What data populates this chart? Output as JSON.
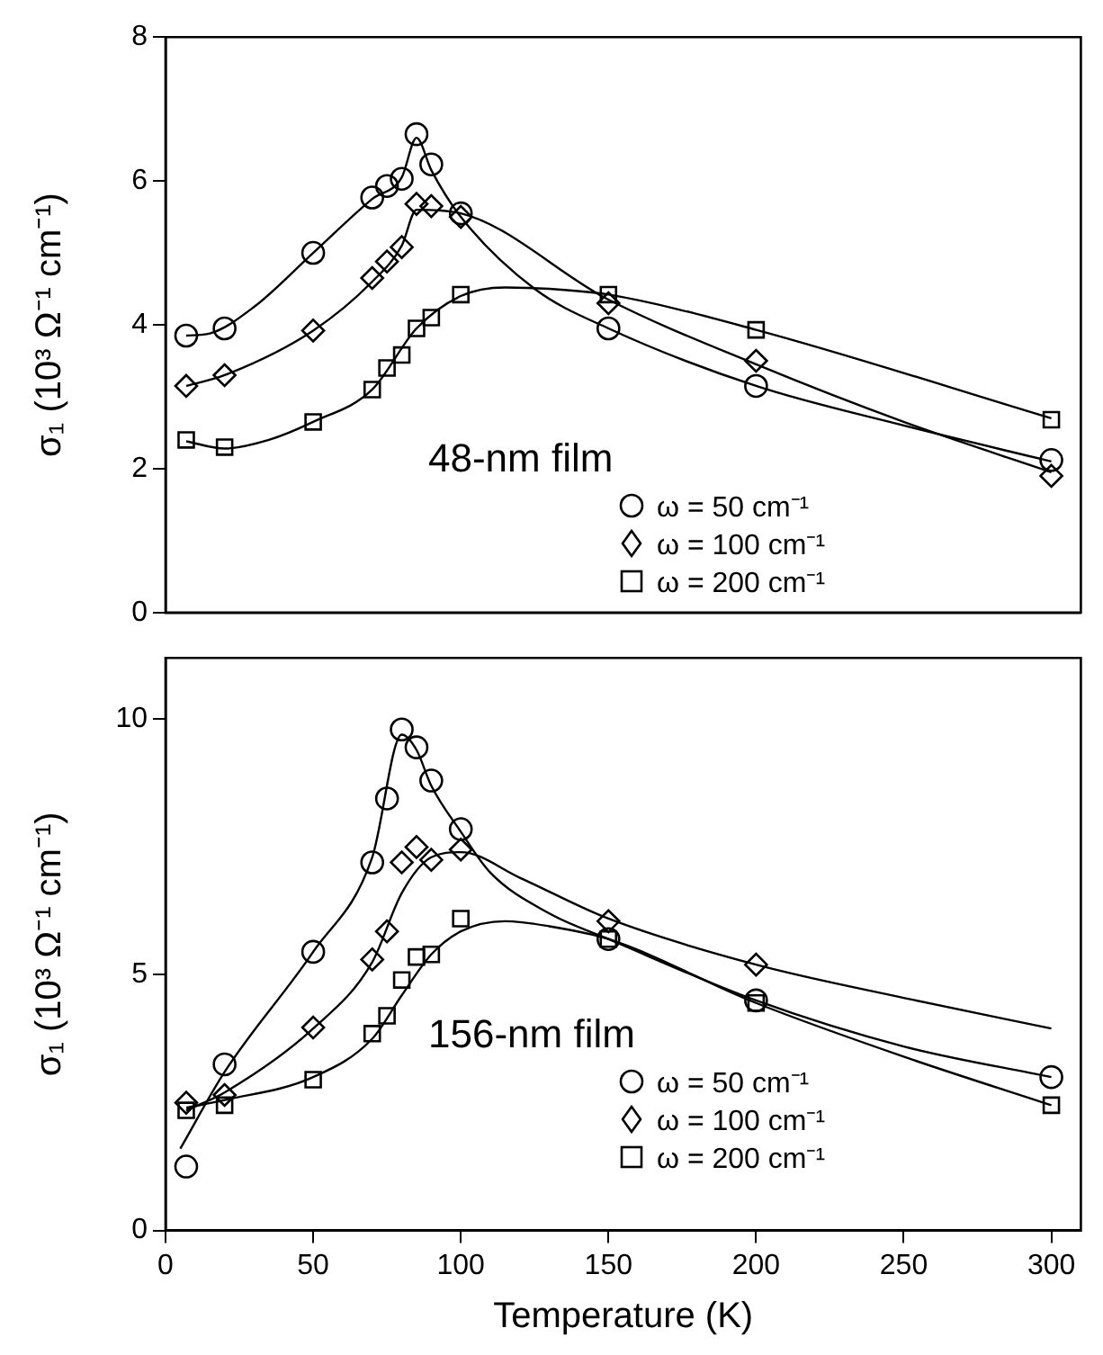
{
  "chart_data": [
    {
      "type": "scatter",
      "legend_title": "48-nm film",
      "ylabel": "σ₁ (10³ Ω⁻¹ cm⁻¹)",
      "xlim": [
        0,
        310
      ],
      "ylim": [
        0,
        8
      ],
      "yticks": [
        0,
        2,
        4,
        6,
        8
      ],
      "tick_labels": "y",
      "legend": "bottom",
      "grid": false,
      "series": [
        {
          "name": "ω = 50 cm⁻¹",
          "marker": "circle",
          "color": "#000000",
          "x": [
            7,
            20,
            50,
            70,
            75,
            80,
            85,
            90,
            100,
            150,
            200,
            300
          ],
          "values": [
            3.85,
            3.95,
            5.0,
            5.77,
            5.93,
            6.03,
            6.65,
            6.23,
            5.55,
            3.95,
            3.15,
            2.12
          ]
        },
        {
          "name": "ω = 100 cm⁻¹",
          "marker": "diamond",
          "color": "#000000",
          "x": [
            7,
            20,
            50,
            70,
            75,
            80,
            85,
            90,
            100,
            150,
            200,
            300
          ],
          "values": [
            3.15,
            3.3,
            3.92,
            4.65,
            4.88,
            5.08,
            5.68,
            5.65,
            5.5,
            4.3,
            3.5,
            1.9
          ]
        },
        {
          "name": "ω = 200 cm⁻¹",
          "marker": "square",
          "color": "#000000",
          "x": [
            7,
            20,
            50,
            70,
            75,
            80,
            85,
            90,
            100,
            150,
            200,
            300
          ],
          "values": [
            2.4,
            2.3,
            2.65,
            3.1,
            3.4,
            3.58,
            3.95,
            4.1,
            4.42,
            4.42,
            3.93,
            2.68
          ]
        },
        {
          "type": "line",
          "marker": "none",
          "color": "#000000",
          "x": [
            7,
            15,
            30,
            50,
            70,
            80,
            85,
            90,
            100,
            125,
            150,
            200,
            250,
            300
          ],
          "values": [
            3.85,
            3.88,
            4.25,
            5.0,
            5.75,
            6.05,
            6.6,
            6.15,
            5.5,
            4.5,
            3.95,
            3.15,
            2.6,
            2.1
          ]
        },
        {
          "type": "line",
          "marker": "none",
          "color": "#000000",
          "x": [
            7,
            20,
            50,
            70,
            80,
            85,
            100,
            150,
            200,
            250,
            300
          ],
          "values": [
            3.15,
            3.3,
            3.92,
            4.6,
            5.1,
            5.6,
            5.55,
            4.35,
            3.45,
            2.65,
            1.95
          ]
        },
        {
          "type": "line",
          "marker": "none",
          "color": "#000000",
          "x": [
            7,
            20,
            35,
            50,
            70,
            85,
            100,
            115,
            130,
            150,
            200,
            300
          ],
          "values": [
            2.38,
            2.28,
            2.4,
            2.65,
            3.1,
            3.95,
            4.4,
            4.52,
            4.5,
            4.42,
            3.93,
            2.7
          ]
        }
      ]
    },
    {
      "type": "scatter",
      "legend_title": "156-nm film",
      "xlabel": "Temperature (K)",
      "ylabel": "σ₁ (10³ Ω⁻¹ cm⁻¹)",
      "xlim": [
        0,
        310
      ],
      "xticks": [
        0,
        50,
        100,
        150,
        200,
        250,
        300
      ],
      "ylim": [
        0,
        11.2
      ],
      "yticks": [
        0,
        5,
        10
      ],
      "legend": "bottom",
      "grid": false,
      "series": [
        {
          "name": "ω = 50 cm⁻¹",
          "marker": "circle",
          "color": "#000000",
          "x": [
            7,
            20,
            50,
            70,
            75,
            80,
            85,
            90,
            100,
            150,
            200,
            300
          ],
          "values": [
            1.25,
            3.25,
            5.45,
            7.2,
            8.45,
            9.8,
            9.45,
            8.8,
            7.85,
            5.7,
            4.5,
            3.0
          ]
        },
        {
          "name": "ω = 100 cm⁻¹",
          "marker": "diamond",
          "color": "#000000",
          "x": [
            7,
            20,
            50,
            70,
            75,
            80,
            85,
            90,
            100,
            150,
            200
          ],
          "values": [
            2.5,
            2.65,
            3.97,
            5.3,
            5.85,
            7.2,
            7.5,
            7.25,
            7.45,
            6.05,
            5.2
          ]
        },
        {
          "name": "ω = 200 cm⁻¹",
          "marker": "square",
          "color": "#000000",
          "x": [
            7,
            20,
            50,
            70,
            75,
            80,
            85,
            90,
            100,
            150,
            200,
            300
          ],
          "values": [
            2.35,
            2.45,
            2.95,
            3.85,
            4.2,
            4.9,
            5.35,
            5.4,
            6.1,
            5.7,
            4.45,
            2.45
          ]
        },
        {
          "type": "line",
          "marker": "none",
          "color": "#000000",
          "x": [
            5,
            20,
            50,
            70,
            80,
            85,
            90,
            100,
            110,
            130,
            150,
            200,
            250,
            300
          ],
          "values": [
            1.6,
            3.1,
            5.45,
            7.3,
            9.7,
            9.4,
            8.7,
            7.8,
            7.0,
            6.2,
            5.7,
            4.5,
            3.6,
            3.0
          ]
        },
        {
          "type": "line",
          "marker": "none",
          "color": "#000000",
          "x": [
            7,
            20,
            50,
            70,
            80,
            90,
            100,
            120,
            150,
            200,
            250,
            300
          ],
          "values": [
            2.35,
            2.7,
            3.95,
            5.25,
            6.6,
            7.3,
            7.4,
            6.9,
            6.1,
            5.2,
            4.55,
            3.95
          ]
        },
        {
          "type": "line",
          "marker": "none",
          "color": "#000000",
          "x": [
            7,
            20,
            50,
            70,
            80,
            90,
            100,
            115,
            130,
            150,
            200,
            250,
            300
          ],
          "values": [
            2.4,
            2.55,
            3.0,
            3.75,
            4.6,
            5.4,
            5.85,
            6.05,
            5.95,
            5.7,
            4.45,
            3.4,
            2.45
          ]
        }
      ]
    }
  ]
}
